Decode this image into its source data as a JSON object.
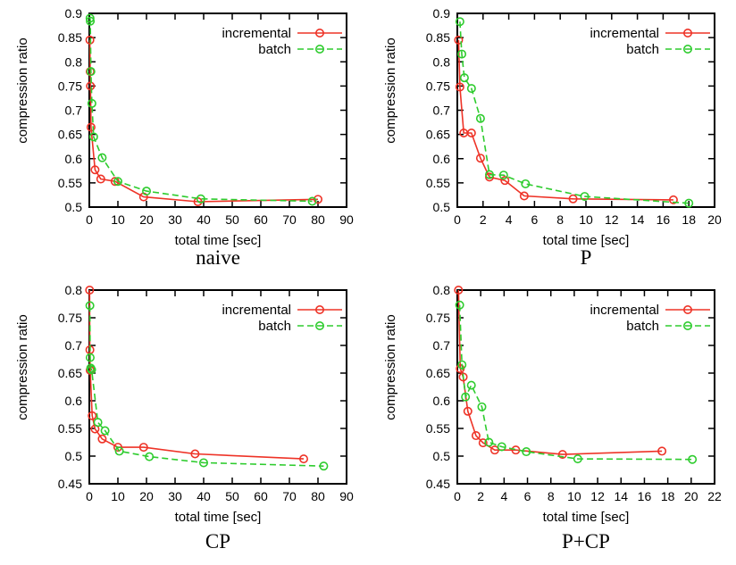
{
  "figure": {
    "background_color": "#ffffff",
    "axis_color": "#000000",
    "text_color": "#000000",
    "legend_entries": [
      "incremental",
      "batch"
    ],
    "series_colors": {
      "incremental": "#ee3327",
      "batch": "#2ecc2e"
    }
  },
  "chart_data": [
    {
      "type": "line",
      "title": "naive",
      "xlabel": "total time [sec]",
      "ylabel": "compression ratio",
      "xlim": [
        0,
        90
      ],
      "ylim": [
        0.5,
        0.9
      ],
      "xticks": [
        0,
        10,
        20,
        30,
        40,
        50,
        60,
        70,
        80,
        90
      ],
      "yticks": [
        0.5,
        0.55,
        0.6,
        0.65,
        0.7,
        0.75,
        0.8,
        0.85,
        0.9
      ],
      "grid": false,
      "legend_position": "top-right",
      "series": [
        {
          "name": "incremental",
          "color": "#ee3327",
          "line_style": "solid",
          "marker": "open-circle",
          "points": [
            [
              0.2,
              0.845
            ],
            [
              0.3,
              0.78
            ],
            [
              0.4,
              0.75
            ],
            [
              0.6,
              0.665
            ],
            [
              2,
              0.577
            ],
            [
              4,
              0.558
            ],
            [
              9,
              0.553
            ],
            [
              19,
              0.521
            ],
            [
              38,
              0.511
            ],
            [
              80,
              0.516
            ]
          ]
        },
        {
          "name": "batch",
          "color": "#2ecc2e",
          "line_style": "dashed",
          "marker": "open-circle",
          "points": [
            [
              0.25,
              0.89
            ],
            [
              0.35,
              0.884
            ],
            [
              0.55,
              0.78
            ],
            [
              0.9,
              0.714
            ],
            [
              1.5,
              0.645
            ],
            [
              4.5,
              0.602
            ],
            [
              10,
              0.553
            ],
            [
              20,
              0.533
            ],
            [
              39,
              0.517
            ],
            [
              78,
              0.512
            ]
          ]
        }
      ]
    },
    {
      "type": "line",
      "title": "P",
      "xlabel": "total time [sec]",
      "ylabel": "compression ratio",
      "xlim": [
        0,
        20
      ],
      "ylim": [
        0.5,
        0.9
      ],
      "xticks": [
        0,
        2,
        4,
        6,
        8,
        10,
        12,
        14,
        16,
        18,
        20
      ],
      "yticks": [
        0.5,
        0.55,
        0.6,
        0.65,
        0.7,
        0.75,
        0.8,
        0.85,
        0.9
      ],
      "grid": false,
      "legend_position": "top-right",
      "series": [
        {
          "name": "incremental",
          "color": "#ee3327",
          "line_style": "solid",
          "marker": "open-circle",
          "points": [
            [
              0.1,
              0.845
            ],
            [
              0.2,
              0.748
            ],
            [
              0.5,
              0.653
            ],
            [
              1.1,
              0.653
            ],
            [
              1.8,
              0.601
            ],
            [
              2.5,
              0.562
            ],
            [
              3.7,
              0.555
            ],
            [
              5.2,
              0.523
            ],
            [
              9,
              0.517
            ],
            [
              16.8,
              0.515
            ]
          ]
        },
        {
          "name": "batch",
          "color": "#2ecc2e",
          "line_style": "dashed",
          "marker": "open-circle",
          "points": [
            [
              0.2,
              0.883
            ],
            [
              0.35,
              0.816
            ],
            [
              0.55,
              0.767
            ],
            [
              1.1,
              0.745
            ],
            [
              1.8,
              0.683
            ],
            [
              2.5,
              0.567
            ],
            [
              3.6,
              0.566
            ],
            [
              5.3,
              0.548
            ],
            [
              9.9,
              0.522
            ],
            [
              18,
              0.508
            ]
          ]
        }
      ]
    },
    {
      "type": "line",
      "title": "CP",
      "xlabel": "total time [sec]",
      "ylabel": "compression ratio",
      "xlim": [
        0,
        90
      ],
      "ylim": [
        0.45,
        0.8
      ],
      "xticks": [
        0,
        10,
        20,
        30,
        40,
        50,
        60,
        70,
        80,
        90
      ],
      "yticks": [
        0.45,
        0.5,
        0.55,
        0.6,
        0.65,
        0.7,
        0.75,
        0.8
      ],
      "grid": false,
      "legend_position": "top-right",
      "series": [
        {
          "name": "incremental",
          "color": "#ee3327",
          "line_style": "solid",
          "marker": "open-circle",
          "points": [
            [
              0.1,
              0.8
            ],
            [
              0.2,
              0.692
            ],
            [
              0.3,
              0.655
            ],
            [
              1,
              0.573
            ],
            [
              2,
              0.549
            ],
            [
              4.5,
              0.531
            ],
            [
              10,
              0.516
            ],
            [
              19,
              0.516
            ],
            [
              37,
              0.504
            ],
            [
              75,
              0.495
            ]
          ]
        },
        {
          "name": "batch",
          "color": "#2ecc2e",
          "line_style": "dashed",
          "marker": "open-circle",
          "points": [
            [
              0.2,
              0.772
            ],
            [
              0.3,
              0.678
            ],
            [
              0.5,
              0.659
            ],
            [
              0.8,
              0.656
            ],
            [
              3,
              0.561
            ],
            [
              5.5,
              0.546
            ],
            [
              10.5,
              0.509
            ],
            [
              21,
              0.499
            ],
            [
              40,
              0.488
            ],
            [
              82,
              0.482
            ]
          ]
        }
      ]
    },
    {
      "type": "line",
      "title": "P+CP",
      "xlabel": "total time [sec]",
      "ylabel": "compression ratio",
      "xlim": [
        0,
        22
      ],
      "ylim": [
        0.45,
        0.8
      ],
      "xticks": [
        0,
        2,
        4,
        6,
        8,
        10,
        12,
        14,
        16,
        18,
        20,
        22
      ],
      "yticks": [
        0.45,
        0.5,
        0.55,
        0.6,
        0.65,
        0.7,
        0.75,
        0.8
      ],
      "grid": false,
      "legend_position": "top-right",
      "series": [
        {
          "name": "incremental",
          "color": "#ee3327",
          "line_style": "solid",
          "marker": "open-circle",
          "points": [
            [
              0.1,
              0.8
            ],
            [
              0.25,
              0.658
            ],
            [
              0.5,
              0.643
            ],
            [
              0.9,
              0.581
            ],
            [
              1.6,
              0.537
            ],
            [
              2.2,
              0.524
            ],
            [
              3.2,
              0.511
            ],
            [
              5,
              0.511
            ],
            [
              9,
              0.503
            ],
            [
              17.5,
              0.509
            ]
          ]
        },
        {
          "name": "batch",
          "color": "#2ecc2e",
          "line_style": "dashed",
          "marker": "open-circle",
          "points": [
            [
              0.2,
              0.773
            ],
            [
              0.4,
              0.665
            ],
            [
              0.7,
              0.607
            ],
            [
              1.2,
              0.628
            ],
            [
              2.1,
              0.589
            ],
            [
              2.7,
              0.525
            ],
            [
              3.8,
              0.517
            ],
            [
              5.9,
              0.508
            ],
            [
              10.3,
              0.495
            ],
            [
              20.1,
              0.494
            ]
          ]
        }
      ]
    }
  ]
}
